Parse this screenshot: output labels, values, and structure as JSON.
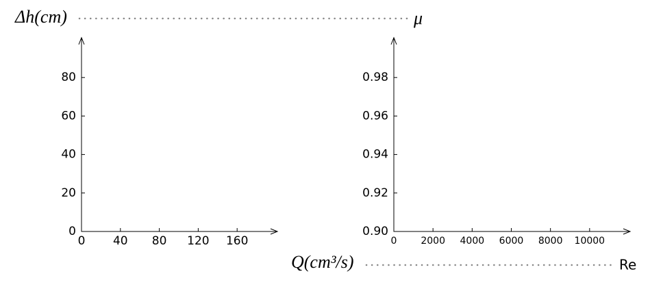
{
  "chart_data": [
    {
      "type": "scatter",
      "y_label": "Δh(cm)",
      "x_label": "Q(cm³/s)",
      "xlim": [
        0,
        200
      ],
      "ylim": [
        0,
        100
      ],
      "xticks": [
        0,
        40,
        80,
        120,
        160
      ],
      "yticks": [
        0,
        20,
        40,
        60,
        80
      ]
    },
    {
      "type": "scatter",
      "y_label": "μ",
      "x_label": "Re",
      "xlim": [
        0,
        12000
      ],
      "ylim": [
        0.9,
        1.0
      ],
      "xticks": [
        0,
        2000,
        4000,
        6000,
        8000,
        10000
      ],
      "yticks": [
        {
          "value": 0.9,
          "label": "0.90"
        },
        {
          "value": 0.92,
          "label": "0.92"
        },
        {
          "value": 0.94,
          "label": "0.94"
        },
        {
          "value": 0.96,
          "label": "0.96"
        },
        {
          "value": 0.98,
          "label": "0.98"
        }
      ]
    }
  ]
}
